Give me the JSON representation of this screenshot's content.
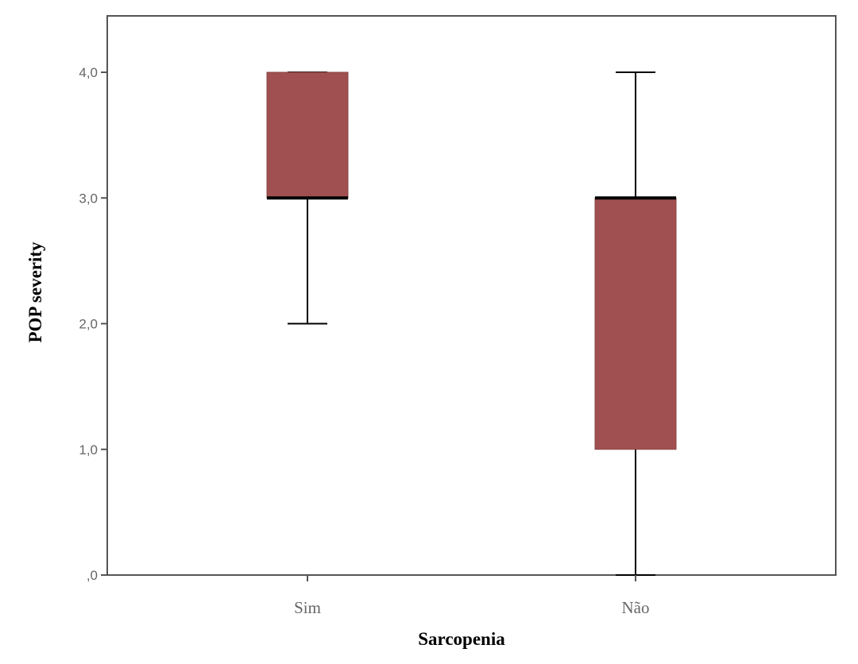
{
  "chart_data": {
    "type": "boxplot",
    "xlabel": "Sarcopenia",
    "ylabel": "POP severity",
    "ylim": [
      0,
      4.4
    ],
    "yticks": [
      0,
      1,
      2,
      3,
      4
    ],
    "ytick_labels": [
      ",0",
      "1,0",
      "2,0",
      "3,0",
      "4,0"
    ],
    "categories": [
      "Sim",
      "Não"
    ],
    "boxes": [
      {
        "category": "Sim",
        "min": 2,
        "q1": 3,
        "median": 3,
        "q3": 4,
        "max": 4
      },
      {
        "category": "Não",
        "min": 0,
        "q1": 1,
        "median": 3,
        "q3": 3,
        "max": 4
      }
    ],
    "grid": false,
    "box_color": "#a05050"
  }
}
